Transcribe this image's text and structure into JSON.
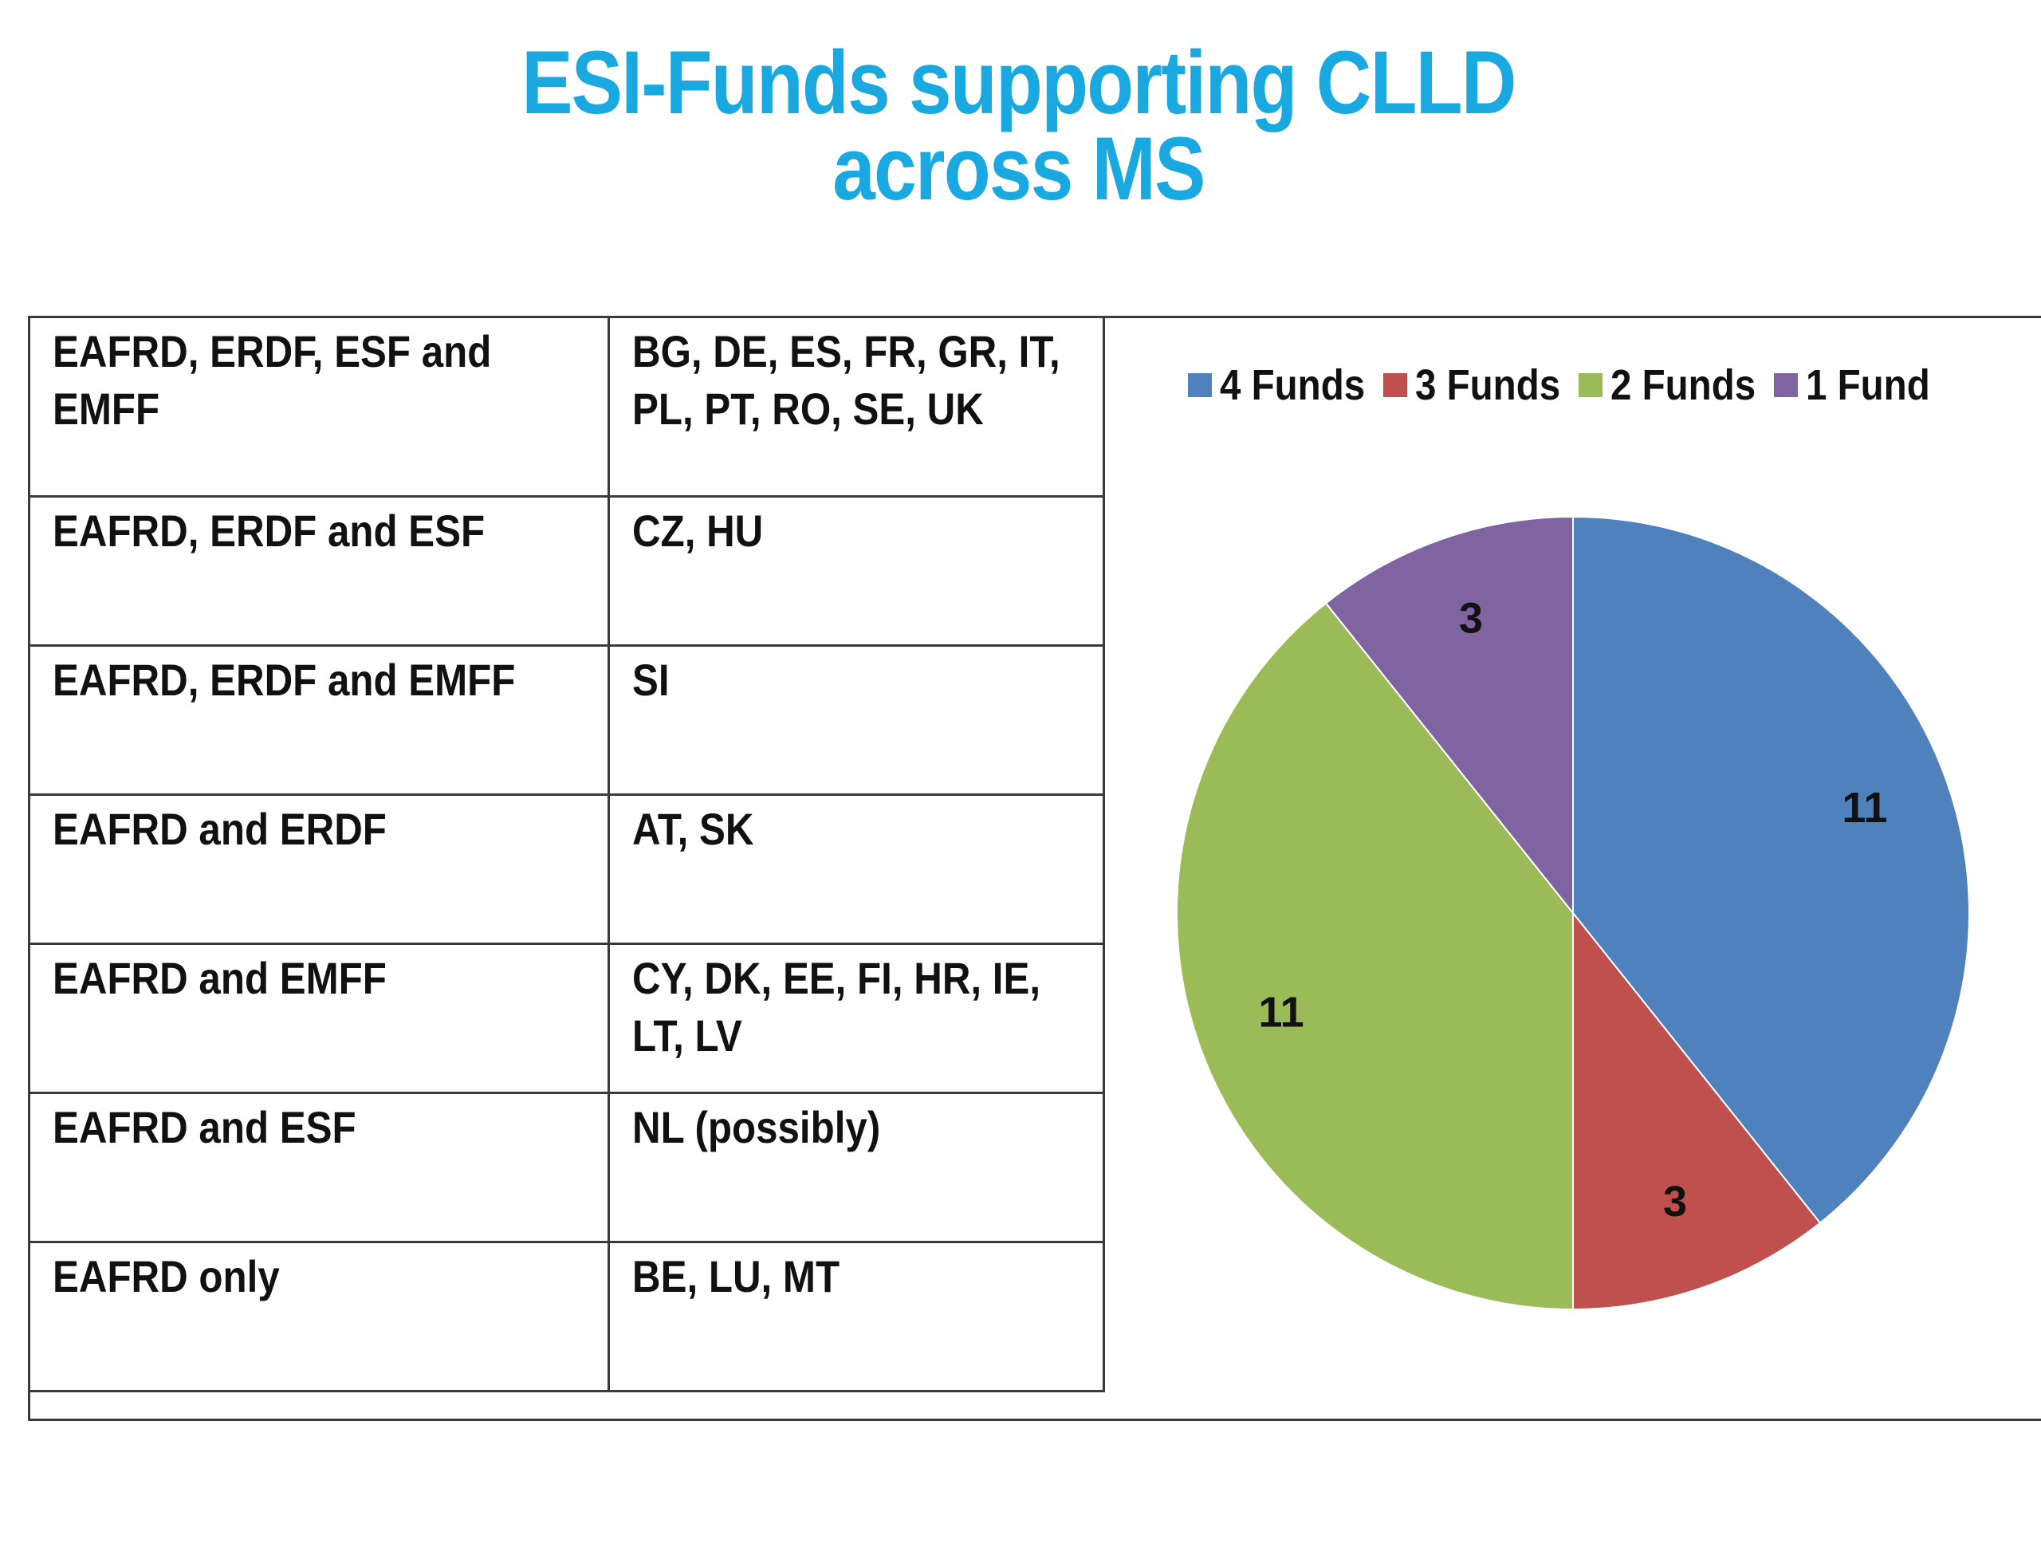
{
  "title": {
    "line1": "ESI-Funds supporting CLLD",
    "line2": "across MS"
  },
  "table": {
    "rows": [
      {
        "funds": "EAFRD, ERDF, ESF and EMFF",
        "countries": "BG, DE, ES, FR, GR, IT, PL, PT, RO, SE, UK"
      },
      {
        "funds": "EAFRD, ERDF and ESF",
        "countries": "CZ, HU"
      },
      {
        "funds": "EAFRD, ERDF and EMFF",
        "countries": "SI"
      },
      {
        "funds": "EAFRD and ERDF",
        "countries": "AT, SK"
      },
      {
        "funds": "EAFRD and EMFF",
        "countries": "CY, DK, EE, FI, HR, IE, LT, LV"
      },
      {
        "funds": "EAFRD and ESF",
        "countries": "NL (possibly)"
      },
      {
        "funds": "EAFRD only",
        "countries": "BE, LU, MT"
      }
    ]
  },
  "chart_data": {
    "type": "pie",
    "categories": [
      "4 Funds",
      "3 Funds",
      "2 Funds",
      "1 Fund"
    ],
    "values": [
      11,
      3,
      11,
      3
    ],
    "data_labels": [
      "11",
      "3",
      "11",
      "3"
    ],
    "colors": [
      "#4f81bd",
      "#c0504d",
      "#9bbb59",
      "#8064a2"
    ],
    "legend_position": "top",
    "start_angle": "12 o'clock",
    "direction": "clockwise"
  }
}
